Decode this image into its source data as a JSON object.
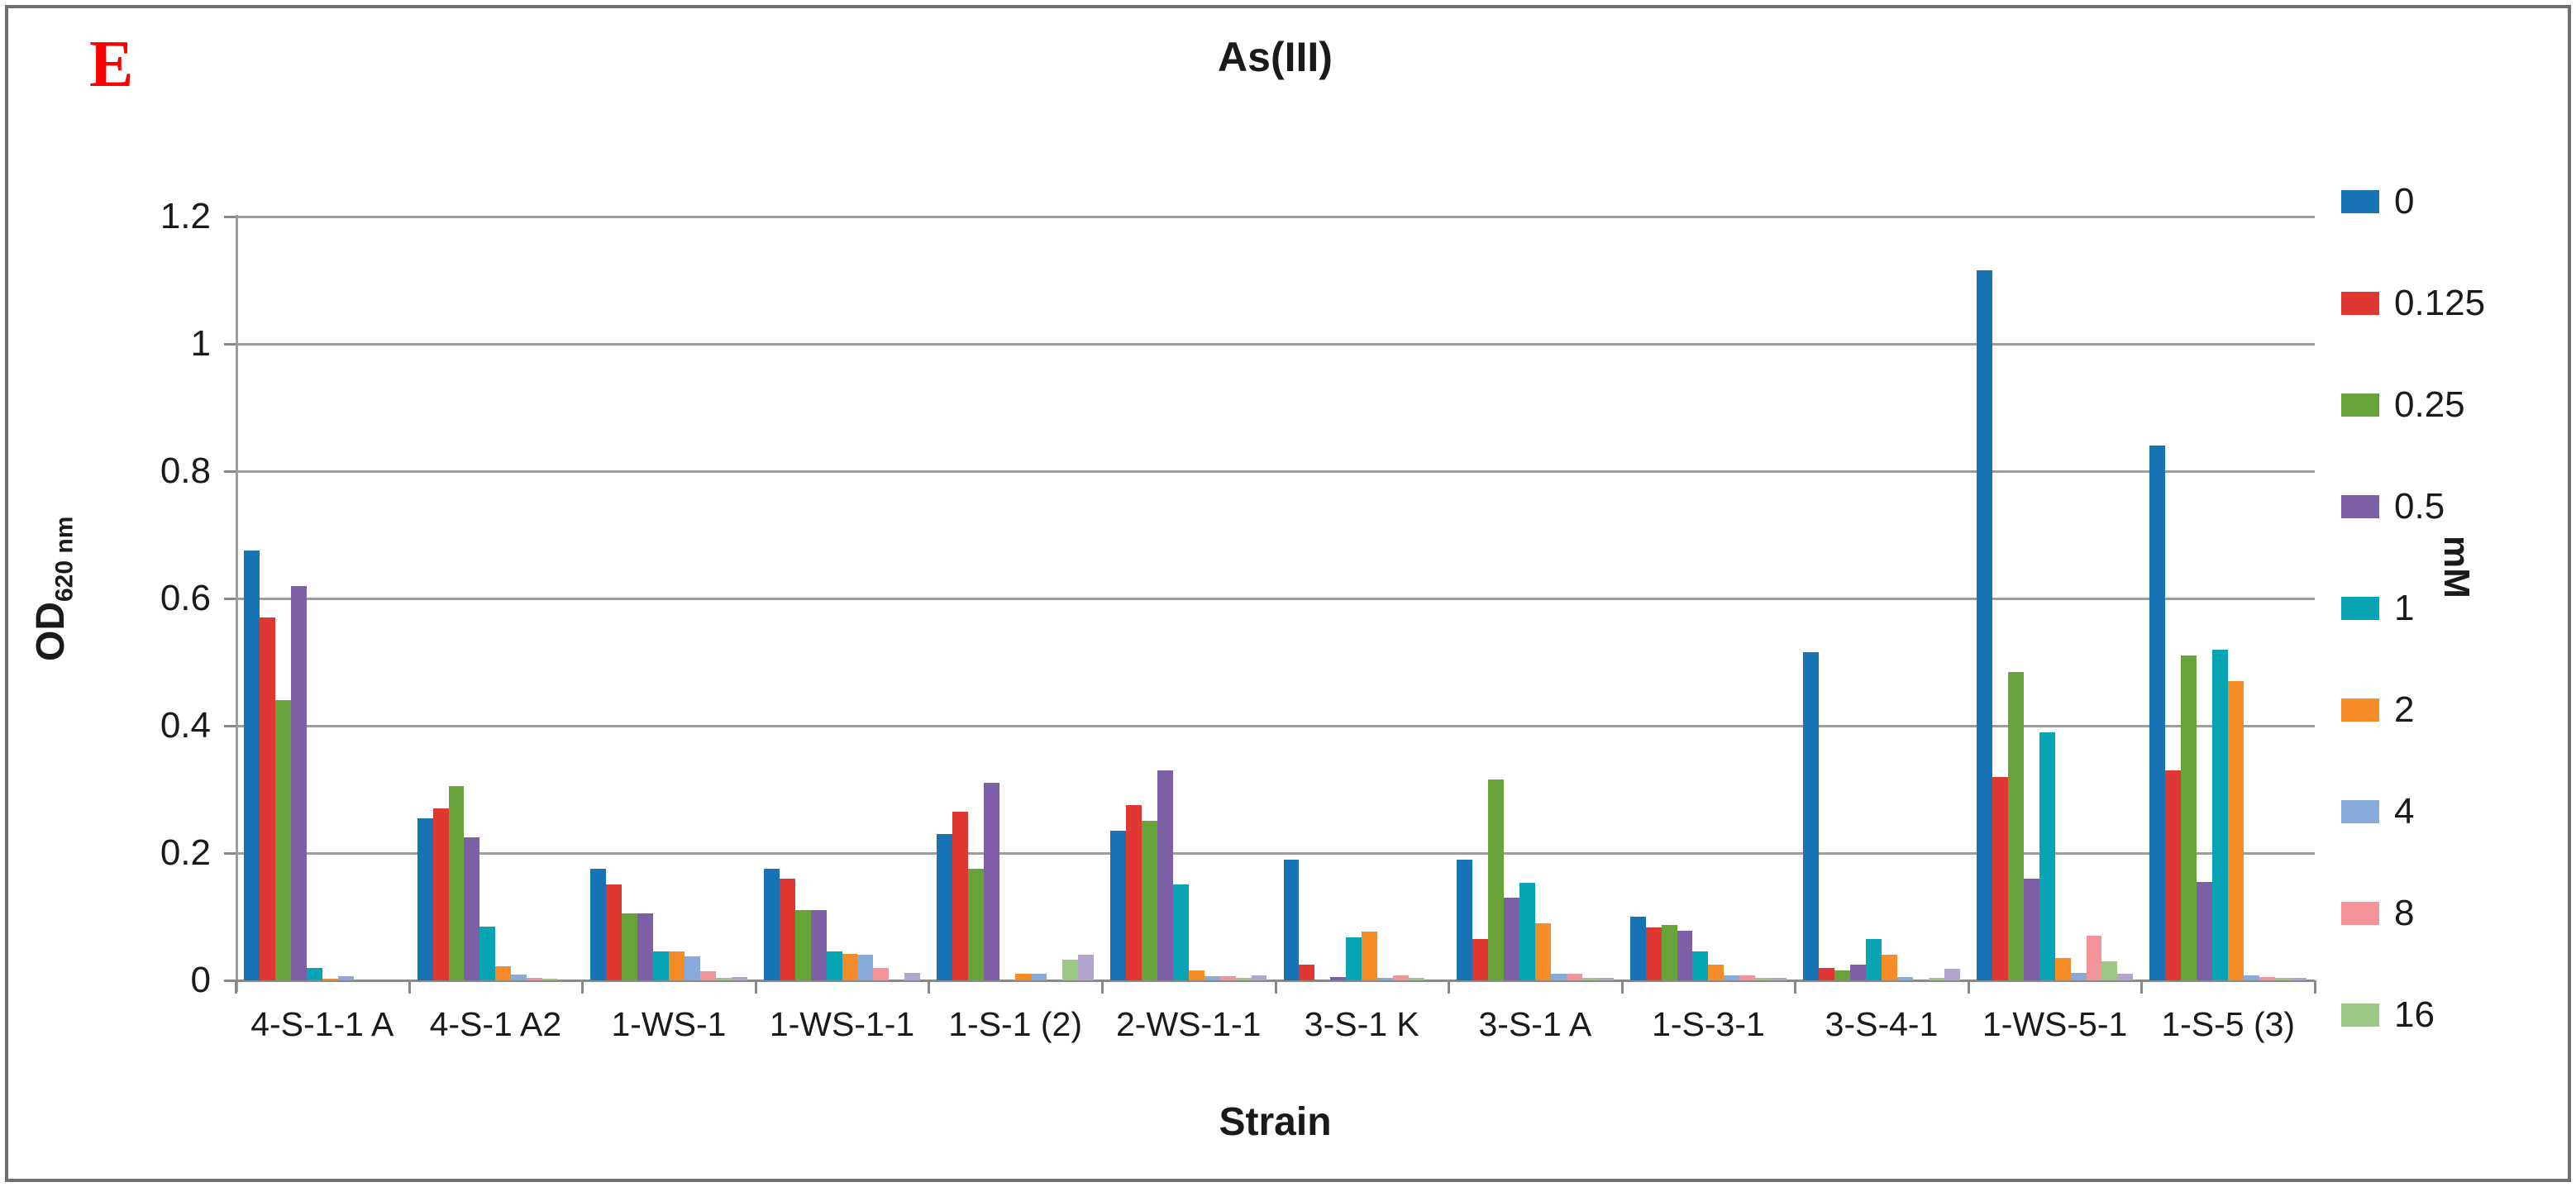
{
  "panel_label": "E",
  "chart_data": {
    "type": "bar",
    "title": "As(III)",
    "xlabel": "Strain",
    "ylabel": "OD",
    "ylabel_subscript": "620 nm",
    "legend_title": "mM",
    "legend_position": "right",
    "grid": true,
    "ylim": [
      0,
      1.2
    ],
    "yticks": [
      0,
      0.2,
      0.4,
      0.6,
      0.8,
      1,
      1.2
    ],
    "categories": [
      "4-S-1-1 A",
      "4-S-1 A2",
      "1-WS-1",
      "1-WS-1-1",
      "1-S-1 (2)",
      "2-WS-1-1",
      "3-S-1 K",
      "3-S-1 A",
      "1-S-3-1",
      "3-S-4-1",
      "1-WS-5-1",
      "1-S-5 (3)"
    ],
    "series": [
      {
        "name": "0",
        "color": "#1674b5",
        "values": [
          0.675,
          0.255,
          0.175,
          0.175,
          0.23,
          0.235,
          0.19,
          0.19,
          0.1,
          0.515,
          1.115,
          0.84
        ]
      },
      {
        "name": "0.125",
        "color": "#df3832",
        "values": [
          0.57,
          0.27,
          0.15,
          0.16,
          0.265,
          0.275,
          0.025,
          0.065,
          0.083,
          0.02,
          0.32,
          0.33
        ]
      },
      {
        "name": "0.25",
        "color": "#67a339",
        "values": [
          0.44,
          0.305,
          0.105,
          0.11,
          0.175,
          0.25,
          0.0,
          0.315,
          0.087,
          0.015,
          0.485,
          0.51
        ]
      },
      {
        "name": "0.5",
        "color": "#7c5fa5",
        "values": [
          0.62,
          0.225,
          0.105,
          0.11,
          0.31,
          0.33,
          0.005,
          0.13,
          0.078,
          0.025,
          0.16,
          0.155
        ]
      },
      {
        "name": "1",
        "color": "#07a4b5",
        "values": [
          0.02,
          0.085,
          0.045,
          0.045,
          0.0,
          0.15,
          0.067,
          0.153,
          0.045,
          0.065,
          0.39,
          0.52
        ]
      },
      {
        "name": "2",
        "color": "#f68c28",
        "values": [
          0.003,
          0.022,
          0.045,
          0.042,
          0.01,
          0.015,
          0.076,
          0.09,
          0.025,
          0.04,
          0.035,
          0.47
        ]
      },
      {
        "name": "4",
        "color": "#86abdb",
        "values": [
          0.006,
          0.009,
          0.038,
          0.04,
          0.01,
          0.006,
          0.004,
          0.01,
          0.008,
          0.005,
          0.012,
          0.008
        ]
      },
      {
        "name": "8",
        "color": "#f2949a",
        "values": [
          0.0,
          0.004,
          0.014,
          0.02,
          0.0,
          0.006,
          0.008,
          0.01,
          0.008,
          0.0,
          0.07,
          0.005
        ]
      },
      {
        "name": "16",
        "color": "#9cc784",
        "values": [
          0.0,
          0.003,
          0.004,
          0.0,
          0.033,
          0.004,
          0.004,
          0.004,
          0.004,
          0.004,
          0.03,
          0.004
        ]
      },
      {
        "name": "",
        "color": "#b3a4cd",
        "values": [
          0.0,
          0.0,
          0.005,
          0.012,
          0.04,
          0.008,
          0.0,
          0.004,
          0.004,
          0.018,
          0.01,
          0.004
        ]
      }
    ]
  },
  "colors": {
    "panel_label": "#ff0000",
    "gridline": "#9d9d9d",
    "axis": "#898989",
    "text": "#1a1a1a",
    "frame_border": "#6f6f6f",
    "background": "#ffffff"
  }
}
